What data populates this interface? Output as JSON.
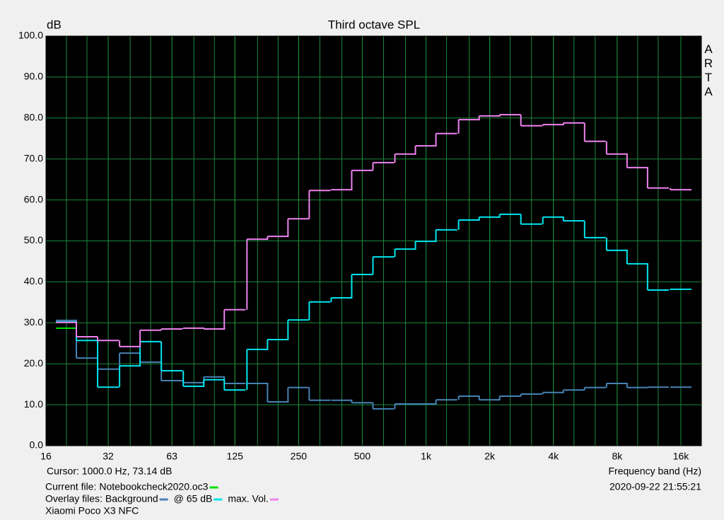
{
  "chart_data": {
    "type": "step",
    "title": "Third octave SPL",
    "y_label": "dB",
    "x_label": "Frequency band (Hz)",
    "watermark": "ARTA",
    "cursor": "Cursor:  1000.0 Hz, 73.14 dB",
    "timestamp": "2020-09-22  21:55:21",
    "current_file_label": "Current file:",
    "overlay_files_label": "Overlay files:",
    "device": "Xiaomi Poco X3 NFC",
    "xscale": "log",
    "grid": true,
    "xlim": [
      16,
      20000
    ],
    "ylim": [
      0,
      100
    ],
    "xticks": [
      16,
      {
        "value": 31.5,
        "label": "32"
      },
      63,
      125,
      250,
      500,
      {
        "value": 1000,
        "label": "1k"
      },
      {
        "value": 2000,
        "label": "2k"
      },
      {
        "value": 4000,
        "label": "4k"
      },
      {
        "value": 8000,
        "label": "8k"
      },
      {
        "value": 16000,
        "label": "16k"
      }
    ],
    "yticks": [
      {
        "value": 0,
        "label": "0.0"
      },
      {
        "value": 10,
        "label": "10.0"
      },
      {
        "value": 20,
        "label": "20.0"
      },
      {
        "value": 30,
        "label": "30.0"
      },
      {
        "value": 40,
        "label": "40.0"
      },
      {
        "value": 50,
        "label": "50.0"
      },
      {
        "value": 60,
        "label": "60.0"
      },
      {
        "value": 70,
        "label": "70.0"
      },
      {
        "value": 80,
        "label": "80.0"
      },
      {
        "value": 90,
        "label": "90.0"
      },
      {
        "value": 100,
        "label": "100.0"
      }
    ],
    "x": [
      20,
      25,
      31.5,
      40,
      50,
      63,
      80,
      100,
      125,
      160,
      200,
      250,
      315,
      400,
      500,
      630,
      800,
      1000,
      1250,
      1600,
      2000,
      2500,
      3150,
      4000,
      5000,
      6300,
      8000,
      10000,
      12500,
      16000
    ],
    "series": [
      {
        "name": "Notebookcheck2020.oc3",
        "role": "current",
        "color": "#00e000",
        "values": [
          28.7,
          null,
          null,
          null,
          null,
          null,
          null,
          null,
          null,
          null,
          null,
          null,
          null,
          null,
          null,
          null,
          null,
          null,
          null,
          null,
          null,
          null,
          null,
          null,
          null,
          null,
          null,
          null,
          null,
          null
        ]
      },
      {
        "name": "Background",
        "role": "overlay",
        "color": "#4682b4",
        "values": [
          30.6,
          21.4,
          18.7,
          22.6,
          20.4,
          15.9,
          15.4,
          16.8,
          15.2,
          15.2,
          10.7,
          14.2,
          11.1,
          11.1,
          10.5,
          9.0,
          10.2,
          10.2,
          11.2,
          12.1,
          11.2,
          12.1,
          12.6,
          13.0,
          13.6,
          14.2,
          15.2,
          14.2,
          14.3,
          14.3
        ]
      },
      {
        "name": "@ 65 dB",
        "role": "overlay",
        "color": "#00e5ee",
        "values": [
          30.2,
          25.7,
          14.3,
          19.5,
          25.4,
          18.3,
          14.5,
          16.1,
          13.6,
          23.5,
          25.9,
          30.7,
          35.1,
          36.1,
          41.8,
          46.1,
          48.0,
          49.9,
          52.7,
          55.1,
          55.8,
          56.5,
          54.1,
          55.8,
          54.9,
          50.8,
          47.7,
          44.4,
          38.0,
          38.2
        ]
      },
      {
        "name": "max. Vol.",
        "role": "overlay",
        "color": "#ee82ee",
        "values": [
          30.1,
          26.6,
          25.7,
          24.2,
          28.2,
          28.5,
          28.7,
          28.5,
          33.2,
          50.4,
          51.1,
          55.4,
          62.3,
          62.5,
          67.2,
          69.1,
          71.2,
          73.2,
          76.2,
          79.6,
          80.5,
          80.8,
          78.1,
          78.4,
          78.8,
          74.3,
          71.2,
          67.9,
          62.9,
          62.5
        ]
      }
    ]
  }
}
